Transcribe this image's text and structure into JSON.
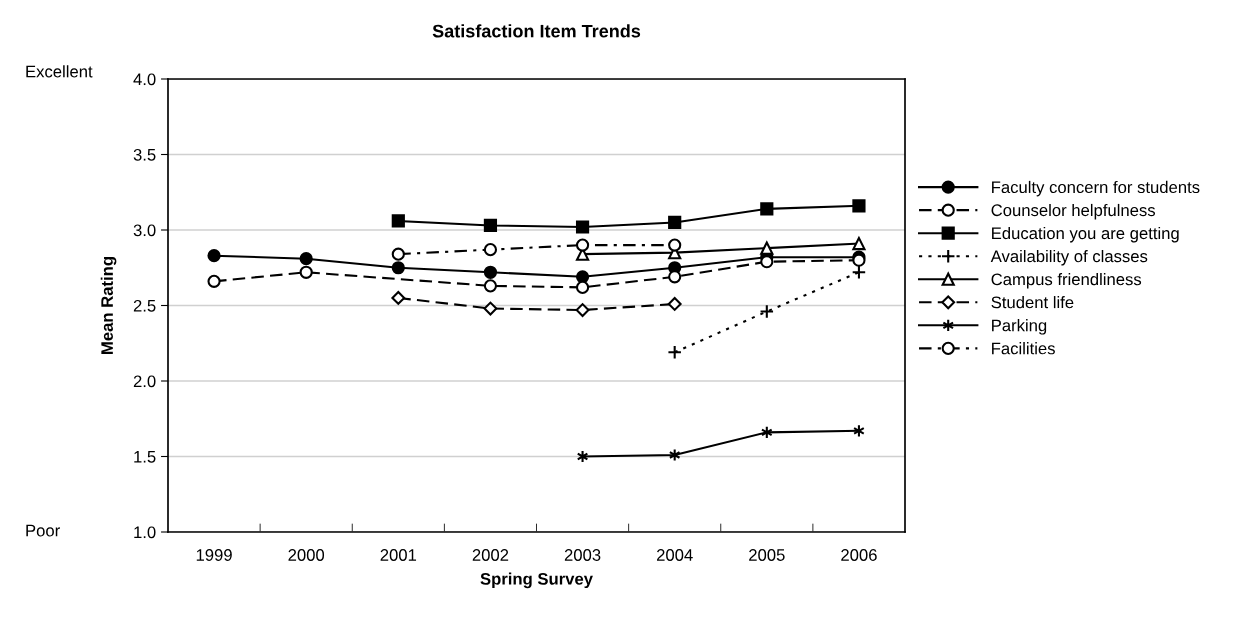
{
  "chart_data": {
    "type": "line",
    "title": "Satisfaction Item Trends",
    "xlabel": "Spring Survey",
    "ylabel": "Mean Rating",
    "categories": [
      "1999",
      "2000",
      "2001",
      "2002",
      "2003",
      "2004",
      "2005",
      "2006"
    ],
    "ylim": [
      1,
      4
    ],
    "yticks": [
      {
        "value": 1,
        "label": "1.0"
      },
      {
        "value": 1.5,
        "label": "1.5"
      },
      {
        "value": 2,
        "label": "2.0"
      },
      {
        "value": 2.5,
        "label": "2.5"
      },
      {
        "value": 3,
        "label": "3.0"
      },
      {
        "value": 3.5,
        "label": "3.5"
      },
      {
        "value": 4,
        "label": "4.0"
      }
    ],
    "grid": "y",
    "legend": "right",
    "annotations": [
      "Excellent",
      "Poor"
    ],
    "series": [
      {
        "name": "Faculty concern for students",
        "color": "#000000",
        "marker": "circle",
        "line_style": "solid",
        "values": [
          2.83,
          2.81,
          2.75,
          2.72,
          2.69,
          2.75,
          2.82,
          2.82
        ]
      },
      {
        "name": "Counselor helpfulness",
        "color": "#000000",
        "marker": "circle-open",
        "line_style": "dashed",
        "values": [
          2.66,
          2.72,
          null,
          2.63,
          2.62,
          2.69,
          2.79,
          2.8
        ]
      },
      {
        "name": "Education you are getting",
        "color": "#000000",
        "marker": "square",
        "line_style": "solid",
        "values": [
          null,
          null,
          3.06,
          3.03,
          3.02,
          3.05,
          3.14,
          3.16
        ]
      },
      {
        "name": "Availability of classes",
        "color": "#000000",
        "marker": "plus",
        "line_style": "dotted",
        "values": [
          null,
          null,
          null,
          null,
          null,
          2.19,
          2.46,
          2.72
        ]
      },
      {
        "name": "Campus friendliness",
        "color": "#000000",
        "marker": "triangle-open",
        "line_style": "solid",
        "values": [
          null,
          null,
          null,
          null,
          2.84,
          2.85,
          2.88,
          2.91
        ]
      },
      {
        "name": "Student life",
        "color": "#000000",
        "marker": "diamond-open",
        "line_style": "dashed",
        "values": [
          null,
          null,
          2.55,
          2.48,
          2.47,
          2.51,
          null,
          null
        ]
      },
      {
        "name": "Parking",
        "color": "#000000",
        "marker": "cross",
        "line_style": "solid",
        "values": [
          null,
          null,
          null,
          null,
          1.5,
          1.51,
          1.66,
          1.67
        ]
      },
      {
        "name": "Facilities",
        "color": "#000000",
        "marker": "circle-open",
        "line_style": "dashdot",
        "values": [
          null,
          null,
          2.84,
          2.87,
          2.9,
          2.9,
          null,
          null
        ]
      }
    ]
  }
}
